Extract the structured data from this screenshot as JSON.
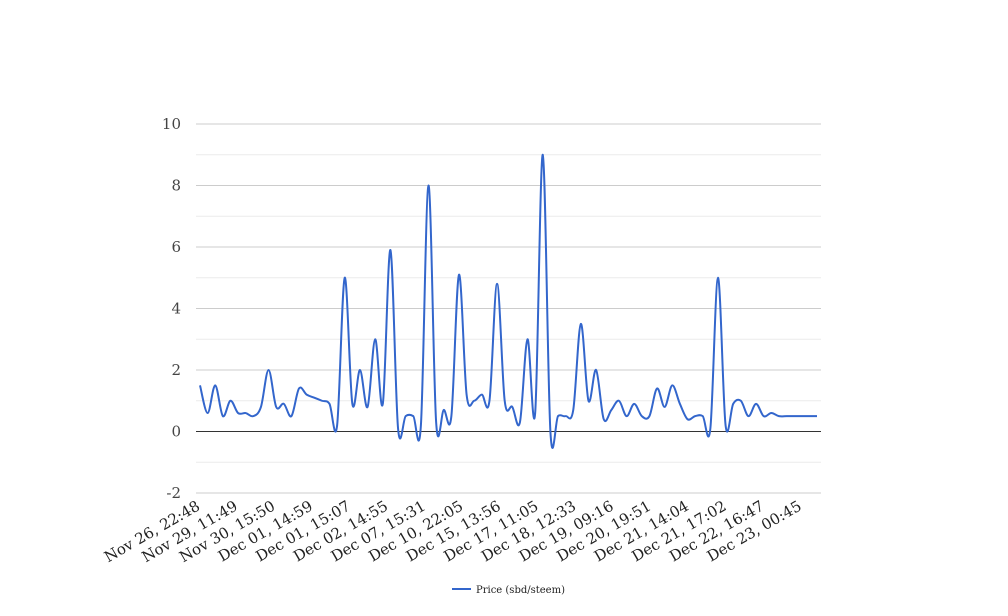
{
  "chart_data": {
    "type": "line",
    "title": "",
    "xlabel": "",
    "ylabel": "",
    "ylim": [
      -2,
      10
    ],
    "yticks": [
      -2,
      0,
      2,
      4,
      6,
      8,
      10
    ],
    "grid": true,
    "legend_position": "bottom",
    "x_tick_labels": [
      "Nov 26, 22:48",
      "Nov 29, 11:49",
      "Nov 30, 15:50",
      "Dec 01, 14:59",
      "Dec 01, 15:07",
      "Dec 02, 14:55",
      "Dec 07, 15:31",
      "Dec 10, 22:05",
      "Dec 15, 13:56",
      "Dec 17, 11:05",
      "Dec 18, 12:33",
      "Dec 19, 09:16",
      "Dec 20, 19:51",
      "Dec 21, 14:04",
      "Dec 21, 17:02",
      "Dec 22, 16:47",
      "Dec 23, 00:45"
    ],
    "series": [
      {
        "name": "Price (sbd/steem)",
        "color": "#3366cc",
        "values": [
          1.5,
          0.6,
          1.5,
          0.5,
          1.0,
          0.6,
          0.6,
          0.5,
          0.8,
          2.0,
          0.8,
          0.9,
          0.5,
          1.4,
          1.2,
          1.1,
          1.0,
          0.9,
          0.2,
          5.0,
          0.9,
          2.0,
          0.8,
          3.0,
          0.9,
          5.9,
          0.1,
          0.5,
          0.5,
          0.2,
          8.0,
          0.3,
          0.7,
          0.5,
          5.1,
          1.2,
          1.0,
          1.2,
          1.0,
          4.8,
          1.0,
          0.8,
          0.3,
          3.0,
          0.6,
          9.0,
          0.0,
          0.5,
          0.5,
          0.7,
          3.5,
          1.0,
          2.0,
          0.4,
          0.7,
          1.0,
          0.5,
          0.9,
          0.5,
          0.5,
          1.4,
          0.8,
          1.5,
          0.9,
          0.4,
          0.5,
          0.5,
          0.1,
          5.0,
          0.2,
          0.9,
          1.0,
          0.5,
          0.9,
          0.5,
          0.6,
          0.5,
          0.5,
          0.5,
          0.5,
          0.5,
          0.5
        ]
      }
    ]
  }
}
